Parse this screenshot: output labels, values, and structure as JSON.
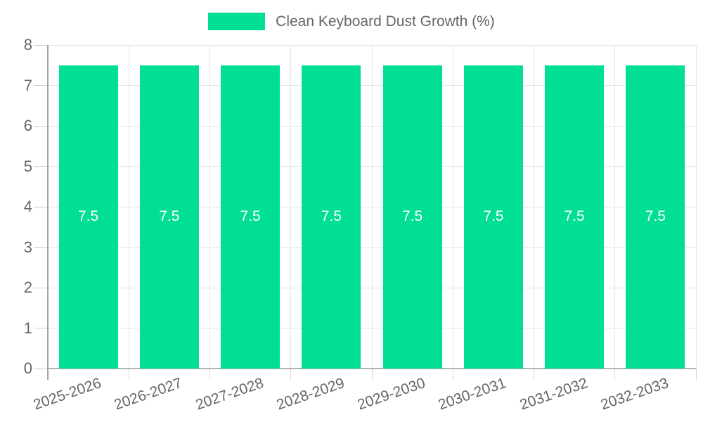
{
  "legend": {
    "label": "Clean Keyboard Dust Growth (%)"
  },
  "chart_data": {
    "type": "bar",
    "title": "Clean Keyboard Dust Growth (%)",
    "categories": [
      "2025-2026",
      "2026-2027",
      "2027-2028",
      "2028-2029",
      "2029-2030",
      "2030-2031",
      "2031-2032",
      "2032-2033"
    ],
    "values": [
      7.5,
      7.5,
      7.5,
      7.5,
      7.5,
      7.5,
      7.5,
      7.5
    ],
    "value_labels": [
      "7.5",
      "7.5",
      "7.5",
      "7.5",
      "7.5",
      "7.5",
      "7.5",
      "7.5"
    ],
    "xlabel": "",
    "ylabel": "",
    "ylim": [
      0,
      8
    ],
    "yticks": [
      0,
      1,
      2,
      3,
      4,
      5,
      6,
      7,
      8
    ],
    "grid": true,
    "legend_position": "top-center",
    "colors": {
      "bar": "#00df92",
      "value_label": "#ffffff",
      "axis_text": "#666666",
      "gridline": "#e6e6e6",
      "axis_line": "#a3a3a3"
    }
  }
}
